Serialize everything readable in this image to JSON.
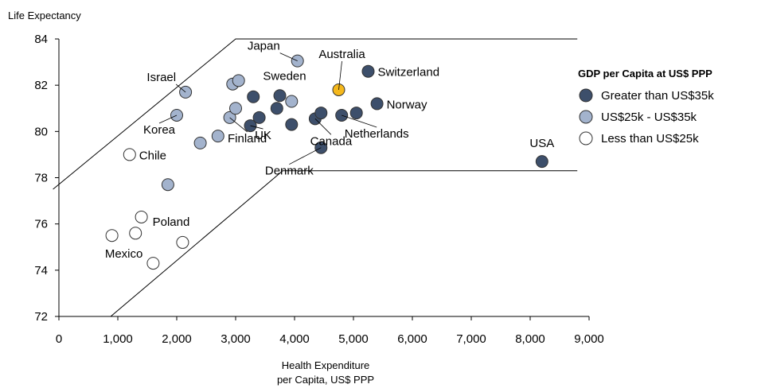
{
  "chart_data": {
    "type": "scatter",
    "title": "",
    "xlabel": "Health Expenditure per Capita, US$ PPP",
    "xlabel_lines": [
      "Health Expenditure",
      "per Capita, US$ PPP"
    ],
    "ylabel": "Life Expectancy",
    "xlim": [
      0,
      9000
    ],
    "ylim": [
      72,
      84
    ],
    "x_ticks": [
      0,
      1000,
      2000,
      3000,
      4000,
      5000,
      6000,
      7000,
      8000,
      9000
    ],
    "x_tick_labels": [
      "0",
      "1,000",
      "2,000",
      "3,000",
      "4,000",
      "5,000",
      "6,000",
      "7,000",
      "8,000",
      "9,000"
    ],
    "y_ticks": [
      72,
      74,
      76,
      78,
      80,
      82,
      84
    ],
    "y_tick_labels": [
      "72",
      "74",
      "76",
      "78",
      "80",
      "82",
      "84"
    ],
    "grid": false,
    "legend_position": "right",
    "legend": {
      "title": "GDP per Capita at US$ PPP",
      "entries": [
        {
          "group": "high",
          "label": "Greater than US$35k"
        },
        {
          "group": "mid",
          "label": "US$25k - US$35k"
        },
        {
          "group": "low",
          "label": "Less than US$25k"
        }
      ]
    },
    "colors": {
      "high": "#3d4f6b",
      "mid": "#a3b3cd",
      "low": "#ffffff",
      "highlight": "#f5b81c",
      "stroke": "#333333",
      "envelope": "#000000"
    },
    "envelope_upper": [
      [
        -100,
        77.5
      ],
      [
        3000,
        84
      ],
      [
        8800,
        84
      ]
    ],
    "envelope_lower": [
      [
        880,
        72
      ],
      [
        3800,
        78.3
      ],
      [
        8800,
        78.3
      ]
    ],
    "points": [
      {
        "x": 4050,
        "y": 83.05,
        "group": "mid",
        "label": "Japan"
      },
      {
        "x": 4750,
        "y": 81.8,
        "group": "highlight",
        "label": "Australia"
      },
      {
        "x": 5250,
        "y": 82.6,
        "group": "high",
        "label": "Switzerland"
      },
      {
        "x": 2150,
        "y": 81.7,
        "group": "mid",
        "label": "Israel"
      },
      {
        "x": 3750,
        "y": 81.55,
        "group": "high",
        "label": "Sweden"
      },
      {
        "x": 5400,
        "y": 81.2,
        "group": "high",
        "label": "Norway"
      },
      {
        "x": 4800,
        "y": 80.7,
        "group": "high",
        "label": "Netherlands"
      },
      {
        "x": 2000,
        "y": 80.7,
        "group": "mid",
        "label": "Korea"
      },
      {
        "x": 3250,
        "y": 80.25,
        "group": "high",
        "label": "UK"
      },
      {
        "x": 2900,
        "y": 80.6,
        "group": "mid",
        "label": "Finland"
      },
      {
        "x": 4350,
        "y": 80.55,
        "group": "high",
        "label": "Canada"
      },
      {
        "x": 1200,
        "y": 79.0,
        "group": "low",
        "label": "Chile"
      },
      {
        "x": 4450,
        "y": 79.3,
        "group": "high",
        "label": "Denmark"
      },
      {
        "x": 8200,
        "y": 78.7,
        "group": "high",
        "label": "USA"
      },
      {
        "x": 1400,
        "y": 76.3,
        "group": "low",
        "label": "Poland"
      },
      {
        "x": 900,
        "y": 75.5,
        "group": "low",
        "label": "Mexico"
      },
      {
        "x": 2950,
        "y": 82.05,
        "group": "mid",
        "label": ""
      },
      {
        "x": 3050,
        "y": 82.2,
        "group": "mid",
        "label": ""
      },
      {
        "x": 3950,
        "y": 81.3,
        "group": "mid",
        "label": ""
      },
      {
        "x": 3000,
        "y": 81.0,
        "group": "mid",
        "label": ""
      },
      {
        "x": 3300,
        "y": 81.5,
        "group": "high",
        "label": ""
      },
      {
        "x": 3700,
        "y": 81.0,
        "group": "high",
        "label": ""
      },
      {
        "x": 3400,
        "y": 80.6,
        "group": "high",
        "label": ""
      },
      {
        "x": 3950,
        "y": 80.3,
        "group": "high",
        "label": ""
      },
      {
        "x": 4450,
        "y": 80.8,
        "group": "high",
        "label": ""
      },
      {
        "x": 5050,
        "y": 80.8,
        "group": "high",
        "label": ""
      },
      {
        "x": 2700,
        "y": 79.8,
        "group": "mid",
        "label": ""
      },
      {
        "x": 2400,
        "y": 79.5,
        "group": "mid",
        "label": ""
      },
      {
        "x": 1850,
        "y": 77.7,
        "group": "mid",
        "label": ""
      },
      {
        "x": 1300,
        "y": 75.6,
        "group": "low",
        "label": ""
      },
      {
        "x": 2100,
        "y": 75.2,
        "group": "low",
        "label": ""
      },
      {
        "x": 1600,
        "y": 74.3,
        "group": "low",
        "label": ""
      }
    ]
  }
}
